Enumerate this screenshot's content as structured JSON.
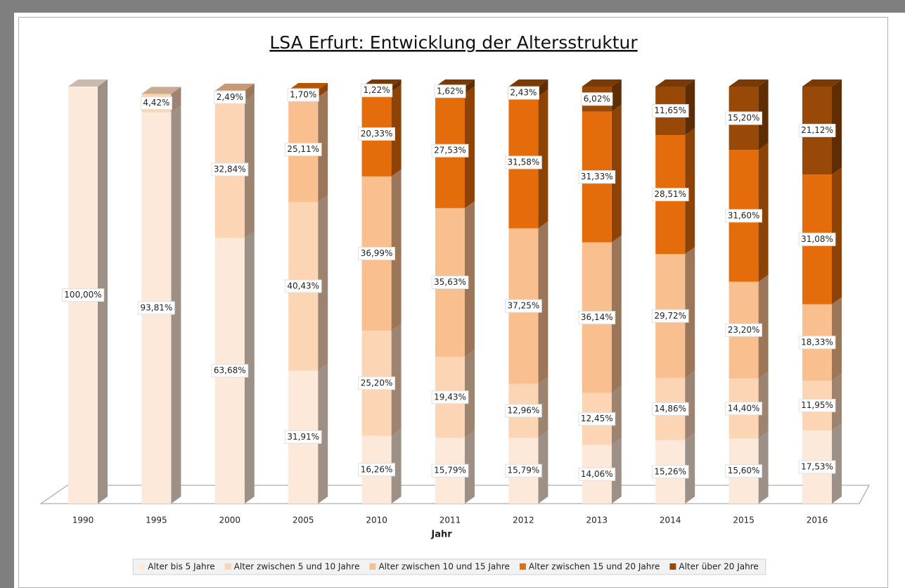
{
  "chart_data": {
    "type": "bar",
    "stacked": true,
    "title": "LSA Erfurt: Entwicklung der Altersstruktur",
    "x_label": "Jahr",
    "categories": [
      "1990",
      "1995",
      "2000",
      "2005",
      "2010",
      "2011",
      "2012",
      "2013",
      "2014",
      "2015",
      "2016"
    ],
    "ylim": [
      0,
      100
    ],
    "legend": "bottom",
    "series": [
      {
        "name": "Alter bis 5 Jahre",
        "color": "#fde9d9",
        "values": [
          100.0,
          93.81,
          63.68,
          31.91,
          16.26,
          15.79,
          15.79,
          14.06,
          15.26,
          15.6,
          17.53
        ],
        "value_labels": [
          "100,00%",
          "93,81%",
          "63,68%",
          "31,91%",
          "16,26%",
          "15,79%",
          "15,79%",
          "14,06%",
          "15,26%",
          "15,60%",
          "17,53%"
        ]
      },
      {
        "name": "Alter zwischen 5 und 10 Jahre",
        "color": "#fcd5b5",
        "values": [
          null,
          4.42,
          32.84,
          40.43,
          25.2,
          19.43,
          12.96,
          12.45,
          14.86,
          14.4,
          11.95
        ],
        "value_labels": [
          null,
          "4,42%",
          "32,84%",
          "40,43%",
          "25,20%",
          "19,43%",
          "12,96%",
          "12,45%",
          "14,86%",
          "14,40%",
          "11,95%"
        ]
      },
      {
        "name": "Alter zwischen 10 und 15 Jahre",
        "color": "#fabf8f",
        "values": [
          null,
          null,
          2.49,
          25.11,
          36.99,
          35.63,
          37.25,
          36.14,
          29.72,
          23.2,
          18.33
        ],
        "value_labels": [
          null,
          null,
          "2,49%",
          "25,11%",
          "36,99%",
          "35,63%",
          "37,25%",
          "36,14%",
          "29,72%",
          "23,20%",
          "18,33%"
        ]
      },
      {
        "name": "Alter zwischen 15 und 20 Jahre",
        "color": "#e46c0a",
        "values": [
          null,
          null,
          null,
          1.7,
          20.33,
          27.53,
          31.58,
          31.33,
          28.51,
          31.6,
          31.08
        ],
        "value_labels": [
          null,
          null,
          null,
          "1,70%",
          "20,33%",
          "27,53%",
          "31,58%",
          "31,33%",
          "28,51%",
          "31,60%",
          "31,08%"
        ]
      },
      {
        "name": "Alter über 20 Jahre",
        "color": "#984807",
        "values": [
          null,
          null,
          null,
          null,
          1.22,
          1.62,
          2.43,
          6.02,
          11.65,
          15.2,
          21.12
        ],
        "value_labels": [
          null,
          null,
          null,
          null,
          "1,22%",
          "1,62%",
          "2,43%",
          "6,02%",
          "11,65%",
          "15,20%",
          "21,12%"
        ]
      }
    ]
  }
}
